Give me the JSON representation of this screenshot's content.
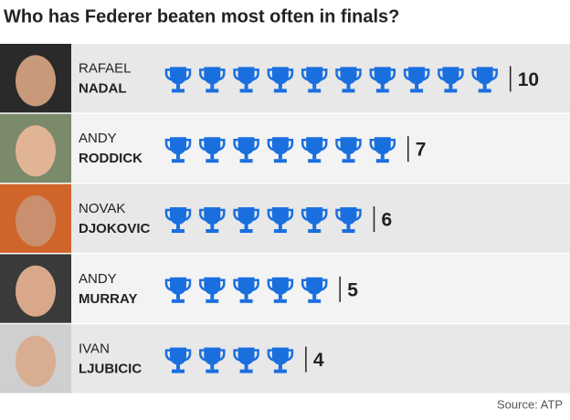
{
  "chart_data": {
    "type": "pictogram",
    "title": "Who has Federer beaten most often in finals?",
    "categories": [
      {
        "first": "RAFAEL",
        "last": "NADAL"
      },
      {
        "first": "ANDY",
        "last": "RODDICK"
      },
      {
        "first": "NOVAK",
        "last": "DJOKOVIC"
      },
      {
        "first": "ANDY",
        "last": "MURRAY"
      },
      {
        "first": "IVAN",
        "last": "LJUBICIC"
      }
    ],
    "values": [
      10,
      7,
      6,
      5,
      4
    ],
    "color": "#1a6fdf",
    "source": "Source: ATP"
  }
}
